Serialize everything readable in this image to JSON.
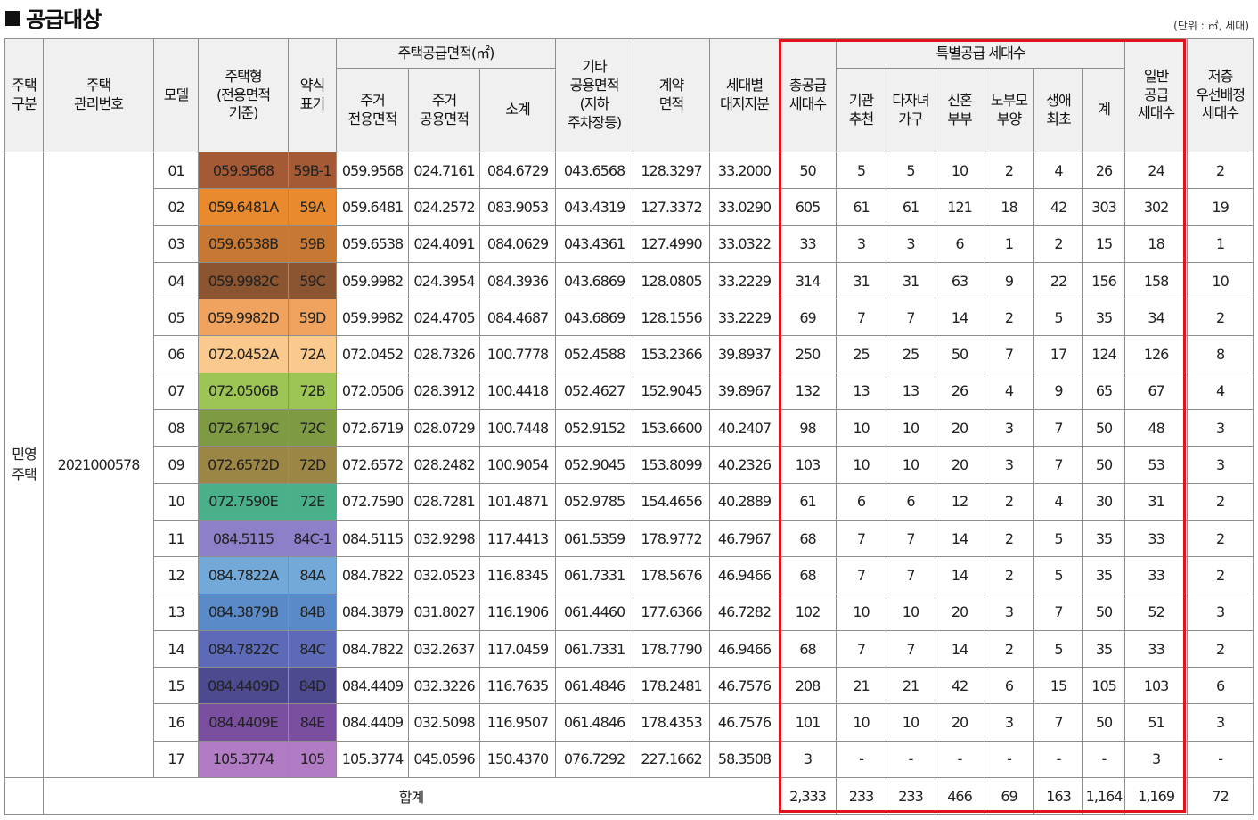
{
  "title": "공급대상",
  "unit_note": "(단위 : ㎡, 세대)",
  "headers": {
    "housing_category": "주택\n구분",
    "management_no": "주택\n관리번호",
    "model": "모델",
    "housing_type": "주택형\n(전용면적\n기준)",
    "abbr": "약식\n표기",
    "supply_area_group": "주택공급면적(㎡)",
    "residential_exclusive": "주거\n전용면적",
    "residential_common": "주거\n공용면적",
    "subtotal": "소계",
    "other_common": "기타\n공용면적\n(지하\n주차장등)",
    "contract_area": "계약\n면적",
    "land_share": "세대별\n대지지분",
    "total_supply": "총공급\n세대수",
    "special_group": "특별공급 세대수",
    "institution": "기관\n추천",
    "multichild": "다자녀\n가구",
    "newlywed": "신혼\n부부",
    "elderly_parent": "노부모\n부양",
    "first_life": "생애\n최초",
    "special_total": "계",
    "general_supply": "일반\n공급\n세대수",
    "low_floor": "저층\n우선배정\n세대수"
  },
  "housing_category_value": "민영\n주택",
  "management_no_value": "2021000578",
  "colors": {
    "accent_red": "#e0141e",
    "header_bg": "#f0f0f0",
    "border": "#8e8e8e"
  },
  "rows": [
    {
      "model": "01",
      "type": "059.9568",
      "abbr": "59B-1",
      "color": "#a35a35",
      "excl": "059.9568",
      "comm": "024.7161",
      "sub": "084.6729",
      "other": "043.6568",
      "contract": "128.3297",
      "land": "33.2000",
      "total": "50",
      "inst": "5",
      "multi": "5",
      "newly": "10",
      "elder": "2",
      "first": "4",
      "sp": "26",
      "gen": "24",
      "low": "2"
    },
    {
      "model": "02",
      "type": "059.6481A",
      "abbr": "59A",
      "color": "#e88a2d",
      "excl": "059.6481",
      "comm": "024.2572",
      "sub": "083.9053",
      "other": "043.4319",
      "contract": "127.3372",
      "land": "33.0290",
      "total": "605",
      "inst": "61",
      "multi": "61",
      "newly": "121",
      "elder": "18",
      "first": "42",
      "sp": "303",
      "gen": "302",
      "low": "19"
    },
    {
      "model": "03",
      "type": "059.6538B",
      "abbr": "59B",
      "color": "#c77833",
      "excl": "059.6538",
      "comm": "024.4091",
      "sub": "084.0629",
      "other": "043.4361",
      "contract": "127.4990",
      "land": "33.0322",
      "total": "33",
      "inst": "3",
      "multi": "3",
      "newly": "6",
      "elder": "1",
      "first": "2",
      "sp": "15",
      "gen": "18",
      "low": "1"
    },
    {
      "model": "04",
      "type": "059.9982C",
      "abbr": "59C",
      "color": "#8a5530",
      "excl": "059.9982",
      "comm": "024.3954",
      "sub": "084.3936",
      "other": "043.6869",
      "contract": "128.0805",
      "land": "33.2229",
      "total": "314",
      "inst": "31",
      "multi": "31",
      "newly": "63",
      "elder": "9",
      "first": "22",
      "sp": "156",
      "gen": "158",
      "low": "10"
    },
    {
      "model": "05",
      "type": "059.9982D",
      "abbr": "59D",
      "color": "#f0a35e",
      "excl": "059.9982",
      "comm": "024.4705",
      "sub": "084.4687",
      "other": "043.6869",
      "contract": "128.1556",
      "land": "33.2229",
      "total": "69",
      "inst": "7",
      "multi": "7",
      "newly": "14",
      "elder": "2",
      "first": "5",
      "sp": "35",
      "gen": "34",
      "low": "2"
    },
    {
      "model": "06",
      "type": "072.0452A",
      "abbr": "72A",
      "color": "#f9c98e",
      "excl": "072.0452",
      "comm": "028.7326",
      "sub": "100.7778",
      "other": "052.4588",
      "contract": "153.2366",
      "land": "39.8937",
      "total": "250",
      "inst": "25",
      "multi": "25",
      "newly": "50",
      "elder": "7",
      "first": "17",
      "sp": "124",
      "gen": "126",
      "low": "8"
    },
    {
      "model": "07",
      "type": "072.0506B",
      "abbr": "72B",
      "color": "#9cc556",
      "excl": "072.0506",
      "comm": "028.3912",
      "sub": "100.4418",
      "other": "052.4627",
      "contract": "152.9045",
      "land": "39.8967",
      "total": "132",
      "inst": "13",
      "multi": "13",
      "newly": "26",
      "elder": "4",
      "first": "9",
      "sp": "65",
      "gen": "67",
      "low": "4"
    },
    {
      "model": "08",
      "type": "072.6719C",
      "abbr": "72C",
      "color": "#7e9a43",
      "excl": "072.6719",
      "comm": "028.0729",
      "sub": "100.7448",
      "other": "052.9152",
      "contract": "153.6600",
      "land": "40.2407",
      "total": "98",
      "inst": "10",
      "multi": "10",
      "newly": "20",
      "elder": "3",
      "first": "7",
      "sp": "50",
      "gen": "48",
      "low": "3"
    },
    {
      "model": "09",
      "type": "072.6572D",
      "abbr": "72D",
      "color": "#9b8645",
      "excl": "072.6572",
      "comm": "028.2482",
      "sub": "100.9054",
      "other": "052.9045",
      "contract": "153.8099",
      "land": "40.2326",
      "total": "103",
      "inst": "10",
      "multi": "10",
      "newly": "20",
      "elder": "3",
      "first": "7",
      "sp": "50",
      "gen": "53",
      "low": "3"
    },
    {
      "model": "10",
      "type": "072.7590E",
      "abbr": "72E",
      "color": "#4ab08a",
      "excl": "072.7590",
      "comm": "028.7281",
      "sub": "101.4871",
      "other": "052.9785",
      "contract": "154.4656",
      "land": "40.2889",
      "total": "61",
      "inst": "6",
      "multi": "6",
      "newly": "12",
      "elder": "2",
      "first": "4",
      "sp": "30",
      "gen": "31",
      "low": "2"
    },
    {
      "model": "11",
      "type": "084.5115",
      "abbr": "84C-1",
      "color": "#8e80c8",
      "excl": "084.5115",
      "comm": "032.9298",
      "sub": "117.4413",
      "other": "061.5359",
      "contract": "178.9772",
      "land": "46.7967",
      "total": "68",
      "inst": "7",
      "multi": "7",
      "newly": "14",
      "elder": "2",
      "first": "5",
      "sp": "35",
      "gen": "33",
      "low": "2"
    },
    {
      "model": "12",
      "type": "084.7822A",
      "abbr": "84A",
      "color": "#72a9d8",
      "excl": "084.7822",
      "comm": "032.0523",
      "sub": "116.8345",
      "other": "061.7331",
      "contract": "178.5676",
      "land": "46.9466",
      "total": "68",
      "inst": "7",
      "multi": "7",
      "newly": "14",
      "elder": "2",
      "first": "5",
      "sp": "35",
      "gen": "33",
      "low": "2"
    },
    {
      "model": "13",
      "type": "084.3879B",
      "abbr": "84B",
      "color": "#5b8ac8",
      "excl": "084.3879",
      "comm": "031.8027",
      "sub": "116.1906",
      "other": "061.4460",
      "contract": "177.6366",
      "land": "46.7282",
      "total": "102",
      "inst": "10",
      "multi": "10",
      "newly": "20",
      "elder": "3",
      "first": "7",
      "sp": "50",
      "gen": "52",
      "low": "3"
    },
    {
      "model": "14",
      "type": "084.7822C",
      "abbr": "84C",
      "color": "#5c6ab8",
      "excl": "084.7822",
      "comm": "032.2637",
      "sub": "117.0459",
      "other": "061.7331",
      "contract": "178.7790",
      "land": "46.9466",
      "total": "68",
      "inst": "7",
      "multi": "7",
      "newly": "14",
      "elder": "2",
      "first": "5",
      "sp": "35",
      "gen": "33",
      "low": "2"
    },
    {
      "model": "15",
      "type": "084.4409D",
      "abbr": "84D",
      "color": "#4d4a90",
      "excl": "084.4409",
      "comm": "032.3226",
      "sub": "116.7635",
      "other": "061.4846",
      "contract": "178.2481",
      "land": "46.7576",
      "total": "208",
      "inst": "21",
      "multi": "21",
      "newly": "42",
      "elder": "6",
      "first": "15",
      "sp": "105",
      "gen": "103",
      "low": "6"
    },
    {
      "model": "16",
      "type": "084.4409E",
      "abbr": "84E",
      "color": "#7a4fa0",
      "excl": "084.4409",
      "comm": "032.5098",
      "sub": "116.9507",
      "other": "061.4846",
      "contract": "178.4353",
      "land": "46.7576",
      "total": "101",
      "inst": "10",
      "multi": "10",
      "newly": "20",
      "elder": "3",
      "first": "7",
      "sp": "50",
      "gen": "51",
      "low": "3"
    },
    {
      "model": "17",
      "type": "105.3774",
      "abbr": "105",
      "color": "#b27cc4",
      "excl": "105.3774",
      "comm": "045.0596",
      "sub": "150.4370",
      "other": "076.7292",
      "contract": "227.1662",
      "land": "58.3508",
      "total": "3",
      "inst": "-",
      "multi": "-",
      "newly": "-",
      "elder": "-",
      "first": "-",
      "sp": "-",
      "gen": "3",
      "low": "-"
    }
  ],
  "totals": {
    "label": "합계",
    "total": "2,333",
    "inst": "233",
    "multi": "233",
    "newly": "466",
    "elder": "69",
    "first": "163",
    "sp": "1,164",
    "gen": "1,169",
    "low": "72"
  }
}
